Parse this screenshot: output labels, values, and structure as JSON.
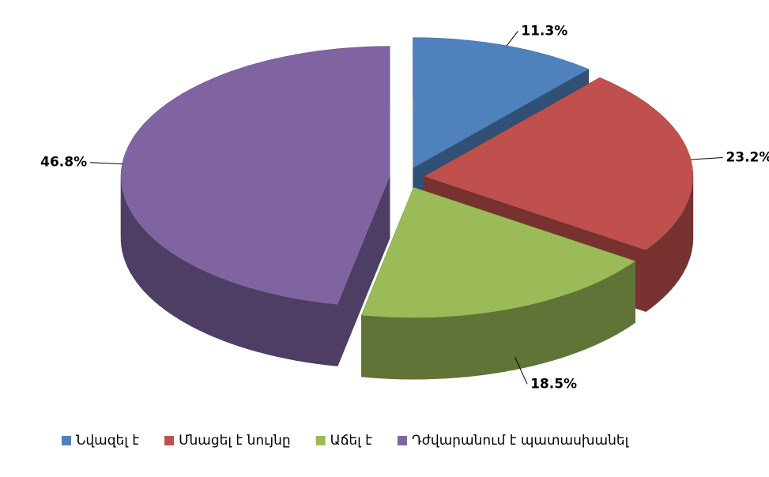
{
  "chart_data": {
    "type": "pie3d",
    "categories": [
      "Նվազել է",
      "Մնացել է նույնը",
      "Աճել է",
      "Դժվարանում է պատասխանել"
    ],
    "values": [
      11.3,
      23.2,
      18.5,
      46.8
    ],
    "value_labels": [
      "11.3%",
      "23.2%",
      "18.5%",
      "46.8%"
    ],
    "colors": [
      "#4f81bd",
      "#c0504d",
      "#9bbb59",
      "#8064a2"
    ],
    "legend": "bottom"
  }
}
